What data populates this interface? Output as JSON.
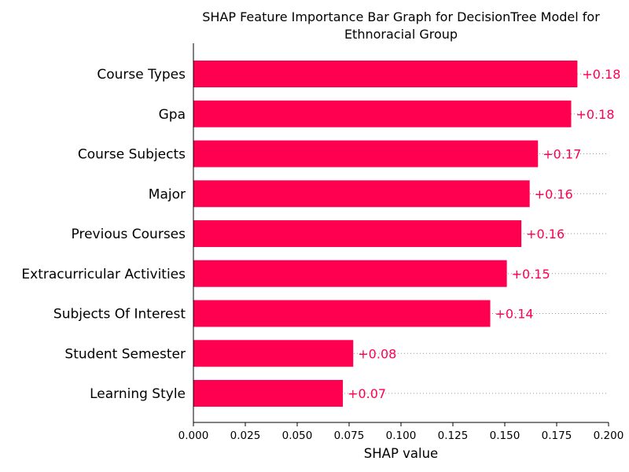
{
  "chart_data": {
    "type": "bar",
    "orientation": "horizontal",
    "title_lines": [
      "SHAP Feature Importance Bar Graph for DecisionTree Model for",
      "Ethnoracial Group"
    ],
    "xlabel": "SHAP value",
    "ylabel": "",
    "xlim": [
      0,
      0.2
    ],
    "xticks": [
      "0.000",
      "0.025",
      "0.050",
      "0.075",
      "0.100",
      "0.125",
      "0.150",
      "0.175",
      "0.200"
    ],
    "categories": [
      "Course Types",
      "Gpa",
      "Course Subjects",
      "Major",
      "Previous Courses",
      "Extracurricular Activities",
      "Subjects Of Interest",
      "Student Semester",
      "Learning Style"
    ],
    "values": [
      0.185,
      0.182,
      0.166,
      0.162,
      0.158,
      0.151,
      0.143,
      0.077,
      0.072
    ],
    "data_labels": [
      "+0.18",
      "+0.18",
      "+0.17",
      "+0.16",
      "+0.16",
      "+0.15",
      "+0.14",
      "+0.08",
      "+0.07"
    ],
    "bar_color": "#ff0051",
    "grid": false
  }
}
